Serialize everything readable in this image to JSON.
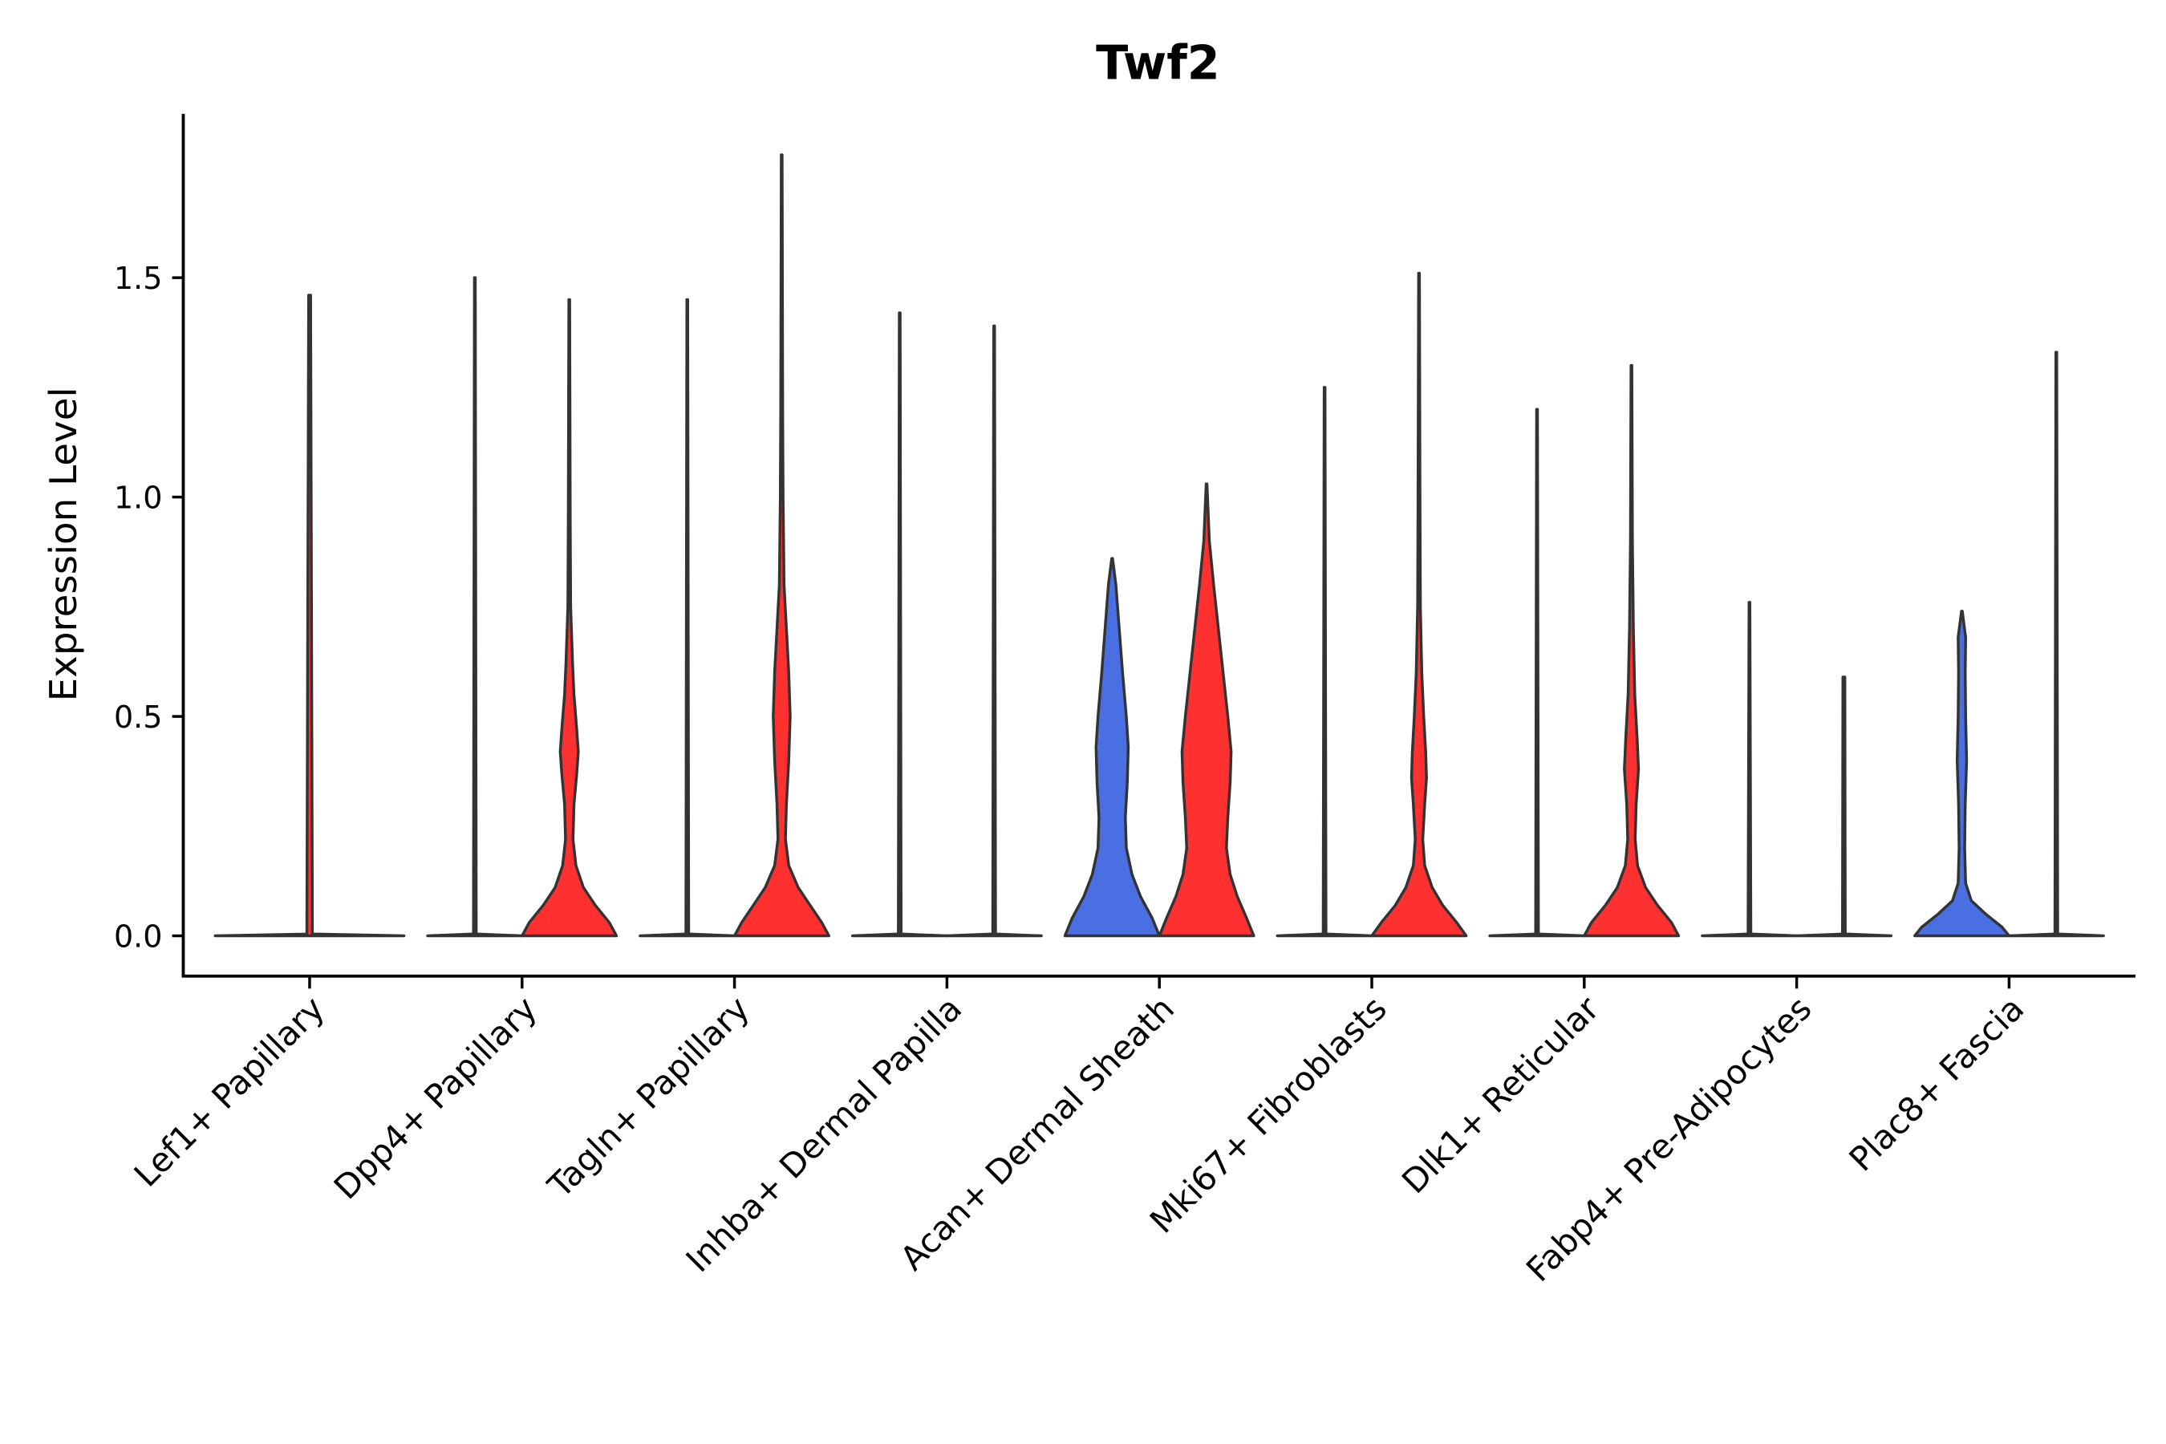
{
  "chart_data": {
    "type": "violin",
    "title": "Twf2",
    "xlabel": "",
    "ylabel": "Expression Level",
    "ylim": [
      -0.09,
      1.87
    ],
    "yticks": [
      0.0,
      0.5,
      1.0,
      1.5
    ],
    "ytick_labels": [
      "0.0",
      "0.5",
      "1.0",
      "1.5"
    ],
    "grid": false,
    "colors": {
      "group_a": "#4A6FE3",
      "group_b": "#FF3030",
      "outline": "#333333"
    },
    "categories": [
      "Lef1+ Papillary",
      "Dpp4+ Papillary",
      "Tagln+ Papillary",
      "Inhba+ Dermal Papilla",
      "Acan+ Dermal Sheath",
      "Mki67+ Fibroblasts",
      "Dlk1+ Reticular",
      "Fabp4+ Pre-Adipocytes",
      "Plac8+ Fascia"
    ],
    "violins": [
      {
        "category": 0,
        "group": "single",
        "max": 1.46,
        "profile": [
          [
            0,
            1
          ],
          [
            0.004,
            0.03
          ],
          [
            1.46,
            0.01
          ]
        ]
      },
      {
        "category": 1,
        "group": "group_a",
        "max": 1.5,
        "profile": [
          [
            0,
            1
          ],
          [
            0.004,
            0.03
          ],
          [
            1.5,
            0.01
          ]
        ]
      },
      {
        "category": 1,
        "group": "group_b",
        "max": 1.45,
        "profile": [
          [
            0,
            1
          ],
          [
            0.03,
            0.85
          ],
          [
            0.07,
            0.55
          ],
          [
            0.11,
            0.3
          ],
          [
            0.16,
            0.14
          ],
          [
            0.22,
            0.08
          ],
          [
            0.3,
            0.1
          ],
          [
            0.37,
            0.16
          ],
          [
            0.42,
            0.19
          ],
          [
            0.47,
            0.16
          ],
          [
            0.55,
            0.1
          ],
          [
            0.62,
            0.07
          ],
          [
            0.75,
            0.03
          ],
          [
            0.95,
            0.02
          ],
          [
            1.45,
            0.01
          ]
        ]
      },
      {
        "category": 2,
        "group": "group_a",
        "max": 1.45,
        "profile": [
          [
            0,
            1
          ],
          [
            0.004,
            0.03
          ],
          [
            1.45,
            0.01
          ]
        ]
      },
      {
        "category": 2,
        "group": "group_b",
        "max": 1.78,
        "profile": [
          [
            0,
            1
          ],
          [
            0.03,
            0.85
          ],
          [
            0.07,
            0.6
          ],
          [
            0.11,
            0.35
          ],
          [
            0.16,
            0.15
          ],
          [
            0.22,
            0.08
          ],
          [
            0.3,
            0.1
          ],
          [
            0.4,
            0.15
          ],
          [
            0.5,
            0.18
          ],
          [
            0.6,
            0.15
          ],
          [
            0.7,
            0.1
          ],
          [
            0.8,
            0.05
          ],
          [
            1.0,
            0.03
          ],
          [
            1.2,
            0.02
          ],
          [
            1.78,
            0.01
          ]
        ]
      },
      {
        "category": 3,
        "group": "group_a",
        "max": 1.42,
        "profile": [
          [
            0,
            1
          ],
          [
            0.004,
            0.03
          ],
          [
            1.42,
            0.01
          ]
        ]
      },
      {
        "category": 3,
        "group": "group_b",
        "max": 1.39,
        "profile": [
          [
            0,
            1
          ],
          [
            0.004,
            0.03
          ],
          [
            1.39,
            0.01
          ]
        ]
      },
      {
        "category": 4,
        "group": "group_a",
        "max": 0.86,
        "profile": [
          [
            0,
            1
          ],
          [
            0.04,
            0.85
          ],
          [
            0.09,
            0.6
          ],
          [
            0.14,
            0.42
          ],
          [
            0.2,
            0.3
          ],
          [
            0.27,
            0.28
          ],
          [
            0.35,
            0.32
          ],
          [
            0.43,
            0.34
          ],
          [
            0.5,
            0.3
          ],
          [
            0.6,
            0.22
          ],
          [
            0.7,
            0.15
          ],
          [
            0.8,
            0.08
          ],
          [
            0.86,
            0.01
          ]
        ]
      },
      {
        "category": 4,
        "group": "group_b",
        "max": 1.03,
        "profile": [
          [
            0,
            1
          ],
          [
            0.04,
            0.85
          ],
          [
            0.09,
            0.65
          ],
          [
            0.14,
            0.5
          ],
          [
            0.2,
            0.42
          ],
          [
            0.27,
            0.45
          ],
          [
            0.35,
            0.5
          ],
          [
            0.42,
            0.52
          ],
          [
            0.5,
            0.45
          ],
          [
            0.6,
            0.35
          ],
          [
            0.7,
            0.25
          ],
          [
            0.8,
            0.15
          ],
          [
            0.9,
            0.06
          ],
          [
            1.03,
            0.01
          ]
        ]
      },
      {
        "category": 5,
        "group": "group_a",
        "max": 1.25,
        "profile": [
          [
            0,
            1
          ],
          [
            0.004,
            0.03
          ],
          [
            1.25,
            0.01
          ]
        ]
      },
      {
        "category": 5,
        "group": "group_b",
        "max": 1.51,
        "profile": [
          [
            0,
            1
          ],
          [
            0.03,
            0.8
          ],
          [
            0.07,
            0.5
          ],
          [
            0.11,
            0.28
          ],
          [
            0.16,
            0.12
          ],
          [
            0.22,
            0.08
          ],
          [
            0.3,
            0.12
          ],
          [
            0.36,
            0.16
          ],
          [
            0.42,
            0.14
          ],
          [
            0.5,
            0.1
          ],
          [
            0.6,
            0.06
          ],
          [
            0.75,
            0.03
          ],
          [
            1.0,
            0.02
          ],
          [
            1.51,
            0.01
          ]
        ]
      },
      {
        "category": 6,
        "group": "group_a",
        "max": 1.2,
        "profile": [
          [
            0,
            1
          ],
          [
            0.004,
            0.03
          ],
          [
            1.2,
            0.01
          ]
        ]
      },
      {
        "category": 6,
        "group": "group_b",
        "max": 1.3,
        "profile": [
          [
            0,
            1
          ],
          [
            0.03,
            0.85
          ],
          [
            0.07,
            0.55
          ],
          [
            0.11,
            0.3
          ],
          [
            0.16,
            0.13
          ],
          [
            0.22,
            0.08
          ],
          [
            0.3,
            0.1
          ],
          [
            0.38,
            0.15
          ],
          [
            0.45,
            0.12
          ],
          [
            0.55,
            0.07
          ],
          [
            0.7,
            0.04
          ],
          [
            0.9,
            0.02
          ],
          [
            1.3,
            0.01
          ]
        ]
      },
      {
        "category": 7,
        "group": "group_a",
        "max": 0.76,
        "profile": [
          [
            0,
            1
          ],
          [
            0.004,
            0.03
          ],
          [
            0.76,
            0.01
          ]
        ]
      },
      {
        "category": 7,
        "group": "group_b",
        "max": 0.59,
        "profile": [
          [
            0,
            1
          ],
          [
            0.004,
            0.03
          ],
          [
            0.59,
            0.02
          ]
        ]
      },
      {
        "category": 8,
        "group": "group_a",
        "max": 0.74,
        "profile": [
          [
            0,
            1
          ],
          [
            0.02,
            0.85
          ],
          [
            0.05,
            0.5
          ],
          [
            0.08,
            0.2
          ],
          [
            0.12,
            0.08
          ],
          [
            0.2,
            0.06
          ],
          [
            0.3,
            0.07
          ],
          [
            0.4,
            0.1
          ],
          [
            0.5,
            0.08
          ],
          [
            0.6,
            0.07
          ],
          [
            0.68,
            0.08
          ],
          [
            0.74,
            0.01
          ]
        ]
      },
      {
        "category": 8,
        "group": "group_b",
        "max": 1.33,
        "profile": [
          [
            0,
            1
          ],
          [
            0.004,
            0.03
          ],
          [
            1.33,
            0.01
          ]
        ]
      }
    ]
  }
}
